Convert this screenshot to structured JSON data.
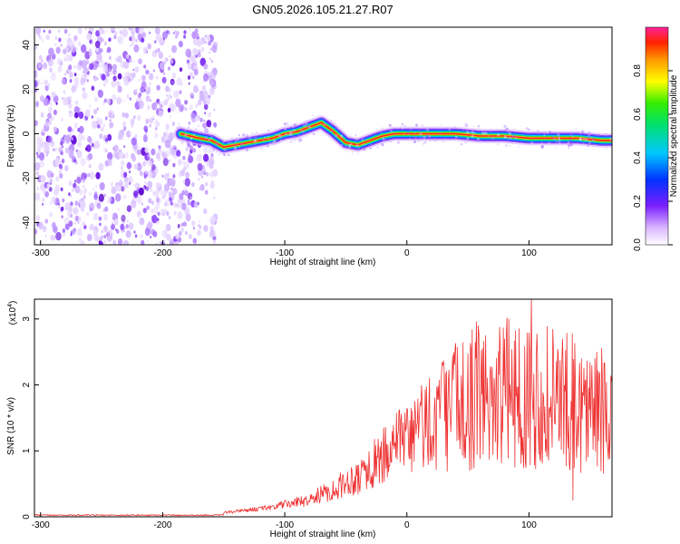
{
  "title": "GN05.2026.105.21.27.R07",
  "chart_data": [
    {
      "type": "heatmap",
      "xlabel": "Height of straight line (km)",
      "ylabel": "Frequency (Hz)",
      "xlim": [
        -305,
        168
      ],
      "ylim": [
        -50,
        48
      ],
      "xticks": [
        -300,
        -200,
        -100,
        0,
        100
      ],
      "yticks": [
        -40,
        -20,
        0,
        20,
        40
      ],
      "noise_region_x": [
        -305,
        -158
      ],
      "ridge": {
        "x": [
          -185,
          -170,
          -160,
          -150,
          -140,
          -130,
          -120,
          -110,
          -100,
          -90,
          -80,
          -70,
          -60,
          -50,
          -40,
          -30,
          -20,
          -10,
          0,
          20,
          40,
          60,
          80,
          100,
          120,
          140,
          160,
          168
        ],
        "y": [
          0,
          -2,
          -3,
          -6,
          -5,
          -4,
          -3,
          -2,
          0,
          1,
          3,
          5,
          1,
          -4,
          -5,
          -3,
          -1,
          0,
          0,
          0,
          0,
          -1,
          -1,
          -2,
          -2,
          -2,
          -3,
          -3
        ]
      },
      "colorbar": {
        "label": "Normalized spectral amplitude",
        "ticks": [
          "0.0",
          "0.2",
          "0.4",
          "0.6",
          "0.8"
        ],
        "range": [
          0,
          1
        ]
      }
    },
    {
      "type": "line",
      "xlabel": "Height of straight line (km)",
      "ylabel": "SNR (10 * v/v)",
      "exponent_label": "(x10",
      "exponent_power": "4",
      "exponent_close": ")",
      "xlim": [
        -305,
        168
      ],
      "ylim": [
        0,
        3.3
      ],
      "xticks": [
        -300,
        -200,
        -100,
        0,
        100
      ],
      "yticks": [
        0,
        1,
        2,
        3
      ],
      "color": "#ee3333",
      "envelope": {
        "x": [
          -305,
          -250,
          -200,
          -160,
          -140,
          -120,
          -100,
          -80,
          -60,
          -40,
          -20,
          0,
          20,
          40,
          60,
          80,
          100,
          120,
          140,
          160,
          168
        ],
        "y": [
          0.02,
          0.02,
          0.03,
          0.04,
          0.08,
          0.12,
          0.18,
          0.25,
          0.4,
          0.6,
          0.85,
          1.1,
          1.4,
          1.6,
          1.75,
          1.78,
          1.75,
          1.7,
          1.6,
          1.5,
          1.45
        ]
      }
    }
  ]
}
